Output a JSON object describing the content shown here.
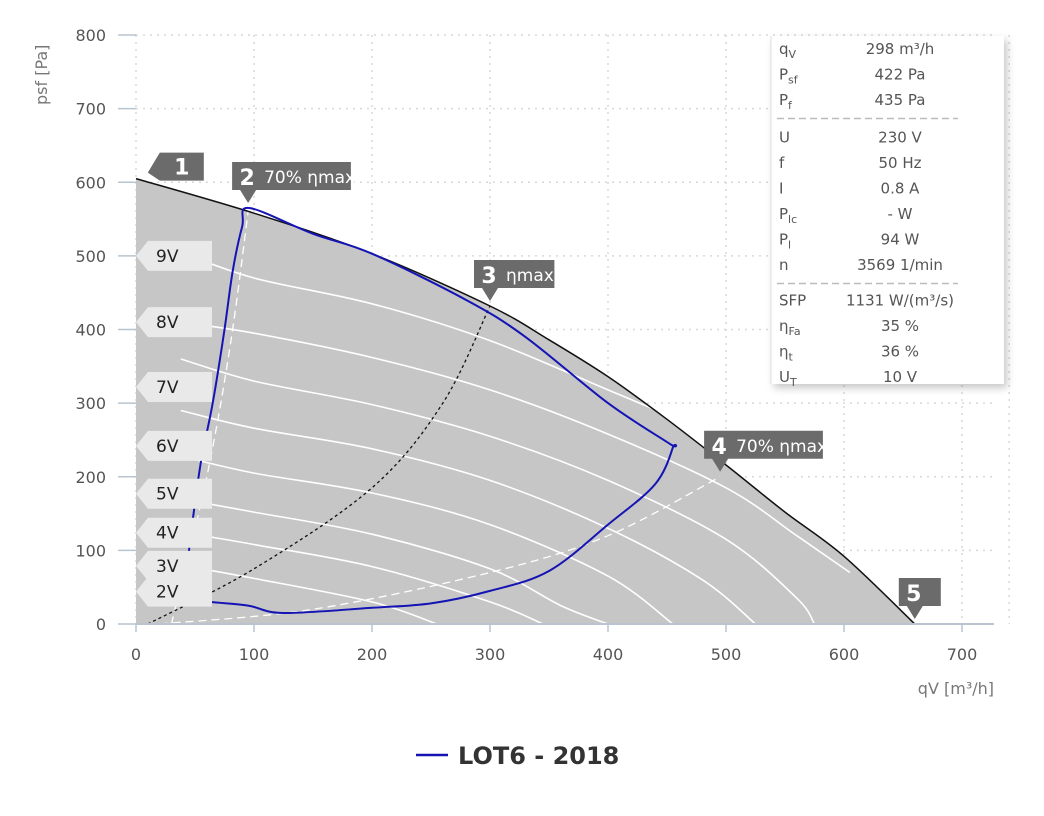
{
  "chart_data": {
    "type": "line",
    "xlabel": "qV [m³/h]",
    "ylabel": "psf [Pa]",
    "xlim": [
      0,
      700
    ],
    "ylim": [
      0,
      800
    ],
    "x_ticks": [
      "0",
      "100",
      "200",
      "300",
      "400",
      "500",
      "600",
      "700"
    ],
    "y_ticks": [
      "0",
      "100",
      "200",
      "300",
      "400",
      "500",
      "600",
      "700",
      "800"
    ],
    "grid": true,
    "legend_position": "bottom-center",
    "colors": {
      "envelope_fill": "#c6c6c6",
      "curve": "#ffffff",
      "max_curve": "#111111",
      "lot6": "#1414b4",
      "marker": "#6b6b6b",
      "vlabel_bg": "#e9e9e9",
      "grid": "#d8d8d8",
      "axis": "#b8c4cf"
    },
    "envelope_max": [
      [
        0,
        605
      ],
      [
        100,
        558
      ],
      [
        200,
        503
      ],
      [
        300,
        432
      ],
      [
        350,
        386
      ],
      [
        400,
        336
      ],
      [
        450,
        278
      ],
      [
        500,
        216
      ],
      [
        550,
        152
      ],
      [
        600,
        92
      ],
      [
        660,
        0
      ]
    ],
    "voltage_curves": [
      {
        "label": "9V",
        "points": [
          [
            38,
            505
          ],
          [
            100,
            470
          ],
          [
            200,
            435
          ],
          [
            300,
            385
          ],
          [
            400,
            318
          ],
          [
            500,
            250
          ],
          [
            560,
            200
          ],
          [
            620,
            150
          ]
        ]
      },
      {
        "label": "8V",
        "points": [
          [
            38,
            410
          ],
          [
            100,
            395
          ],
          [
            200,
            362
          ],
          [
            300,
            318
          ],
          [
            400,
            258
          ],
          [
            500,
            185
          ],
          [
            560,
            120
          ],
          [
            605,
            70
          ]
        ]
      },
      {
        "label": "7V",
        "points": [
          [
            38,
            360
          ],
          [
            100,
            330
          ],
          [
            200,
            298
          ],
          [
            300,
            255
          ],
          [
            400,
            195
          ],
          [
            500,
            115
          ],
          [
            560,
            35
          ],
          [
            575,
            0
          ]
        ]
      },
      {
        "label": "6V",
        "points": [
          [
            38,
            290
          ],
          [
            100,
            266
          ],
          [
            200,
            238
          ],
          [
            300,
            195
          ],
          [
            400,
            130
          ],
          [
            480,
            60
          ],
          [
            525,
            0
          ]
        ]
      },
      {
        "label": "5V",
        "points": [
          [
            38,
            228
          ],
          [
            100,
            205
          ],
          [
            200,
            178
          ],
          [
            300,
            135
          ],
          [
            400,
            65
          ],
          [
            455,
            0
          ]
        ]
      },
      {
        "label": "4V",
        "points": [
          [
            38,
            170
          ],
          [
            100,
            152
          ],
          [
            200,
            122
          ],
          [
            300,
            75
          ],
          [
            360,
            25
          ],
          [
            400,
            0
          ]
        ]
      },
      {
        "label": "3V",
        "points": [
          [
            38,
            125
          ],
          [
            100,
            108
          ],
          [
            200,
            78
          ],
          [
            300,
            30
          ],
          [
            345,
            0
          ]
        ]
      },
      {
        "label": "2V",
        "points": [
          [
            38,
            80
          ],
          [
            100,
            62
          ],
          [
            200,
            30
          ],
          [
            255,
            0
          ]
        ]
      }
    ],
    "efficiency_lines": [
      {
        "name": "70% ηmax left",
        "style": "dashed-white",
        "points": [
          [
            30,
            0
          ],
          [
            60,
            200
          ],
          [
            80,
            380
          ],
          [
            95,
            560
          ]
        ]
      },
      {
        "name": "ηmax",
        "style": "dashed-black",
        "points": [
          [
            10,
            0
          ],
          [
            100,
            75
          ],
          [
            200,
            185
          ],
          [
            260,
            300
          ],
          [
            300,
            432
          ]
        ]
      },
      {
        "name": "70% ηmax right",
        "style": "dashed-white",
        "points": [
          [
            20,
            0
          ],
          [
            150,
            20
          ],
          [
            300,
            70
          ],
          [
            400,
            120
          ],
          [
            495,
            200
          ]
        ]
      }
    ],
    "series": [
      {
        "name": "LOT6 - 2018",
        "points": [
          [
            62,
            30
          ],
          [
            95,
            25
          ],
          [
            125,
            15
          ],
          [
            200,
            22
          ],
          [
            250,
            28
          ],
          [
            300,
            45
          ],
          [
            350,
            72
          ],
          [
            400,
            135
          ],
          [
            440,
            190
          ],
          [
            455,
            240
          ],
          [
            452,
            245
          ],
          [
            400,
            300
          ],
          [
            330,
            390
          ],
          [
            280,
            440
          ],
          [
            200,
            503
          ],
          [
            150,
            530
          ],
          [
            96,
            565
          ],
          [
            90,
            540
          ],
          [
            82,
            480
          ],
          [
            75,
            400
          ],
          [
            65,
            300
          ],
          [
            55,
            220
          ],
          [
            48,
            140
          ],
          [
            42,
            60
          ],
          [
            40,
            30
          ]
        ]
      }
    ],
    "markers": [
      {
        "num": "1",
        "label": "",
        "x": 10,
        "y": 605
      },
      {
        "num": "2",
        "label": "70% ηmax",
        "x": 95,
        "y": 565
      },
      {
        "num": "3",
        "label": "ηmax",
        "x": 300,
        "y": 432
      },
      {
        "num": "4",
        "label": "70% ηmax",
        "x": 495,
        "y": 200
      },
      {
        "num": "5",
        "label": "",
        "x": 660,
        "y": 0
      }
    ],
    "voltage_labels": [
      {
        "label": "9V",
        "y": 500
      },
      {
        "label": "8V",
        "y": 410
      },
      {
        "label": "7V",
        "y": 322
      },
      {
        "label": "6V",
        "y": 242
      },
      {
        "label": "5V",
        "y": 177
      },
      {
        "label": "4V",
        "y": 124
      },
      {
        "label": "3V",
        "y": 79
      },
      {
        "label": "2V",
        "y": 44
      }
    ],
    "legend": [
      {
        "name": "LOT6 - 2018",
        "color": "#1414b4"
      }
    ]
  },
  "info_panel": {
    "group1": [
      {
        "key": "qV",
        "sub": "V",
        "base": "q",
        "value": "298 m³/h"
      },
      {
        "key": "Psf",
        "sub": "sf",
        "base": "P",
        "value": "422 Pa"
      },
      {
        "key": "Pf",
        "sub": "f",
        "base": "P",
        "value": "435 Pa"
      }
    ],
    "group2": [
      {
        "key": "U",
        "sub": "",
        "base": "U",
        "value": "230 V"
      },
      {
        "key": "f",
        "sub": "",
        "base": "f",
        "value": "50 Hz"
      },
      {
        "key": "I",
        "sub": "",
        "base": "I",
        "value": "0.8 A"
      },
      {
        "key": "Plc",
        "sub": "lc",
        "base": "P",
        "value": "- W"
      },
      {
        "key": "Pl",
        "sub": "l",
        "base": "P",
        "value": "94 W"
      },
      {
        "key": "n",
        "sub": "",
        "base": "n",
        "value": "3569 1/min"
      }
    ],
    "group3": [
      {
        "key": "SFP",
        "sub": "",
        "base": "SFP",
        "value": "1131 W/(m³/s)"
      },
      {
        "key": "ηFa",
        "sub": "Fa",
        "base": "η",
        "value": "35 %"
      },
      {
        "key": "ηt",
        "sub": "t",
        "base": "η",
        "value": "36 %"
      },
      {
        "key": "UT",
        "sub": "T",
        "base": "U",
        "value": "10 V"
      }
    ]
  }
}
